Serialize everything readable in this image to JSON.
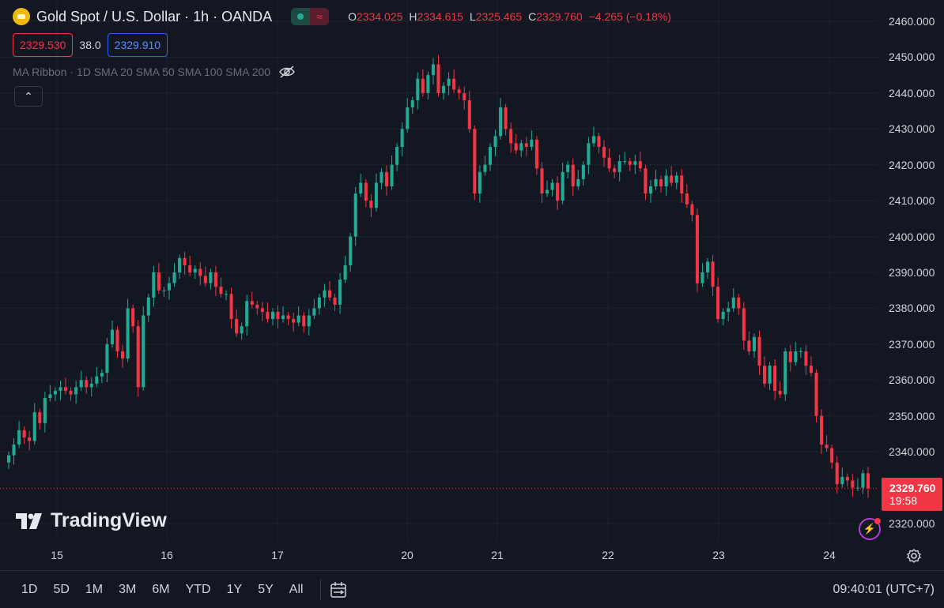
{
  "header": {
    "title": "Gold Spot / U.S. Dollar · 1h · OANDA",
    "ohlc": {
      "o_label": "O",
      "o": "2334.025",
      "h_label": "H",
      "h": "2334.615",
      "l_label": "L",
      "l": "2325.465",
      "c_label": "C",
      "c": "2329.760",
      "change": "−4.265 (−0.18%)"
    },
    "sell_price": "2329.530",
    "spread": "38.0",
    "buy_price": "2329.910",
    "indicator": "MA Ribbon · 1D SMA 20 SMA 50 SMA 100 SMA 200",
    "collapse_symbol": "⌃"
  },
  "logo_text": "TradingView",
  "price_axis": {
    "ticks": [
      "2460.000",
      "2450.000",
      "2440.000",
      "2430.000",
      "2420.000",
      "2410.000",
      "2400.000",
      "2390.000",
      "2380.000",
      "2370.000",
      "2360.000",
      "2350.000",
      "2340.000",
      "2320.000"
    ],
    "last_price": "2329.760",
    "countdown": "19:58"
  },
  "time_axis": {
    "ticks": [
      "15",
      "16",
      "17",
      "20",
      "21",
      "22",
      "23",
      "24"
    ]
  },
  "bottom_bar": {
    "ranges": [
      "1D",
      "5D",
      "1M",
      "3M",
      "6M",
      "YTD",
      "1Y",
      "5Y",
      "All"
    ],
    "clock": "09:40:01 (UTC+7)"
  },
  "colors": {
    "up": "#22ab94",
    "down": "#f23645",
    "background": "#131722",
    "grid": "#1e222d"
  },
  "icons": [
    "gold-coin-icon",
    "eye-crossed-icon",
    "chevron-up-icon",
    "bolt-icon",
    "gear-icon",
    "calendar-range-icon"
  ],
  "chart_data": {
    "type": "candlestick",
    "y_range": [
      2316,
      2465
    ],
    "closes": [
      2339,
      2342,
      2346,
      2344,
      2343,
      2351,
      2348,
      2355,
      2356,
      2357,
      2358,
      2357,
      2356,
      2358,
      2360,
      2358,
      2359,
      2361,
      2362,
      2370,
      2374,
      2368,
      2366,
      2380,
      2375,
      2358,
      2378,
      2383,
      2390,
      2385,
      2385,
      2387,
      2390,
      2394,
      2392,
      2390,
      2391,
      2389,
      2387,
      2390,
      2386,
      2384,
      2384,
      2377,
      2373,
      2375,
      2382,
      2381,
      2380,
      2379,
      2377,
      2379,
      2377,
      2378,
      2377,
      2376,
      2378,
      2375,
      2378,
      2380,
      2383,
      2385,
      2383,
      2381,
      2388,
      2392,
      2400,
      2412,
      2415,
      2410,
      2408,
      2415,
      2418,
      2414,
      2420,
      2425,
      2430,
      2436,
      2438,
      2444,
      2440,
      2445,
      2448,
      2440,
      2442,
      2444,
      2441,
      2440,
      2438,
      2430,
      2412,
      2418,
      2420,
      2425,
      2428,
      2436,
      2430,
      2426,
      2424,
      2426,
      2425,
      2427,
      2419,
      2412,
      2413,
      2415,
      2410,
      2418,
      2420,
      2414,
      2416,
      2420,
      2426,
      2428,
      2425,
      2422,
      2419,
      2418,
      2421,
      2421,
      2420,
      2421,
      2419,
      2412,
      2414,
      2416,
      2414,
      2417,
      2415,
      2417,
      2412,
      2409,
      2406,
      2387,
      2390,
      2393,
      2386,
      2377,
      2379,
      2380,
      2383,
      2380,
      2371,
      2368,
      2372,
      2364,
      2359,
      2364,
      2357,
      2356,
      2368,
      2365,
      2368,
      2368,
      2364,
      2362,
      2350,
      2342,
      2341,
      2337,
      2331,
      2333,
      2332,
      2330,
      2330,
      2334,
      2329.76
    ],
    "opens_derivation": "each candle opens at previous close"
  }
}
